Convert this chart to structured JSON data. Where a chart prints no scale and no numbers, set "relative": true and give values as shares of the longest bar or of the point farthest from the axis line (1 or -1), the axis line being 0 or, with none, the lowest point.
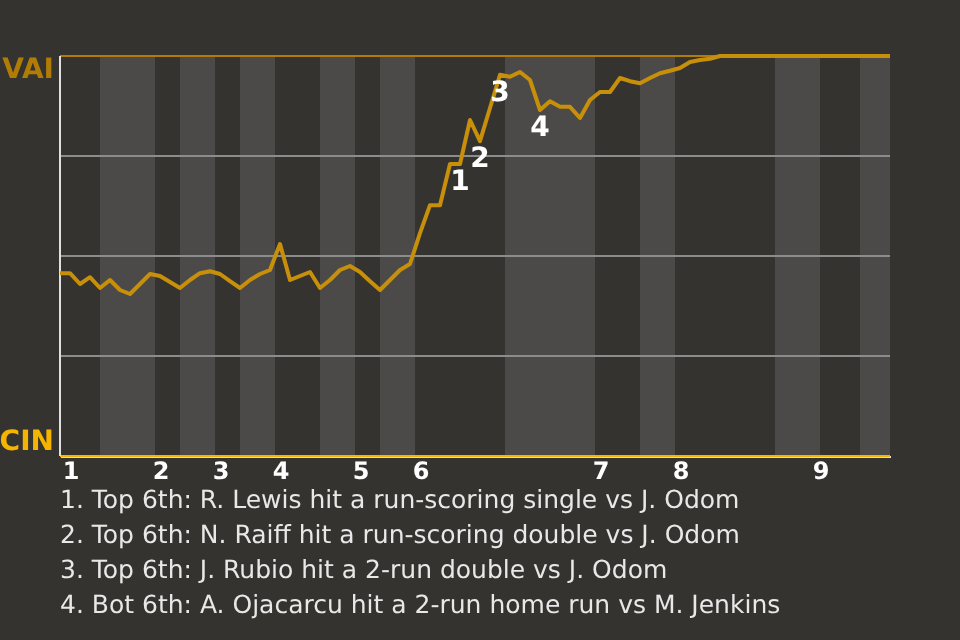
{
  "chart_data": {
    "type": "line",
    "relative": true,
    "categories": [
      null,
      "1",
      null,
      null,
      null,
      null,
      null,
      null,
      null,
      null,
      "2",
      null,
      null,
      null,
      null,
      null,
      "3",
      null,
      null,
      null,
      null,
      null,
      "4",
      null,
      null,
      null,
      null,
      null,
      null,
      null,
      "5",
      null,
      null,
      null,
      null,
      null,
      "6",
      null,
      null,
      null,
      null,
      null,
      null,
      null,
      null,
      null,
      null,
      null,
      null,
      null,
      null,
      null,
      null,
      null,
      "7",
      null,
      null,
      null,
      null,
      null,
      null,
      null,
      "8",
      null,
      null,
      null,
      null,
      null,
      null,
      null,
      null,
      null,
      null,
      null,
      null,
      null,
      "9",
      null,
      null,
      null,
      null,
      null,
      null,
      null
    ],
    "series": [
      {
        "color": "#c8900a",
        "values": [
          0.457,
          0.457,
          0.43,
          0.447,
          0.42,
          0.44,
          0.415,
          0.405,
          0.43,
          0.455,
          0.45,
          0.435,
          0.42,
          0.44,
          0.457,
          0.462,
          0.455,
          0.437,
          0.42,
          0.44,
          0.455,
          0.465,
          0.53,
          0.44,
          0.45,
          0.46,
          0.42,
          0.44,
          0.465,
          0.475,
          0.46,
          0.437,
          0.415,
          0.44,
          0.465,
          0.48,
          0.557,
          0.627,
          0.627,
          0.73,
          0.73,
          0.84,
          0.787,
          0.87,
          0.953,
          0.948,
          0.96,
          0.94,
          0.865,
          0.887,
          0.873,
          0.873,
          0.845,
          0.89,
          0.91,
          0.91,
          0.945,
          0.937,
          0.932,
          0.945,
          0.957,
          0.963,
          0.97,
          0.985,
          0.99,
          0.993,
          1,
          1,
          1,
          1,
          1,
          1,
          1,
          1,
          1,
          1,
          1,
          1,
          1,
          1,
          1,
          1,
          1,
          1
        ]
      }
    ],
    "ref_lines": [
      {
        "axis": "y",
        "value": 1,
        "label": "VAI",
        "color": "#b07c06"
      },
      {
        "axis": "y",
        "value": 0.75,
        "color": "#8c8c8c"
      },
      {
        "axis": "y",
        "value": 0.5,
        "color": "#8c8c8c"
      },
      {
        "axis": "y",
        "value": 0.25,
        "color": "#8c8c8c"
      },
      {
        "axis": "y",
        "value": 0,
        "label": "CIN",
        "color": "#f5b400"
      }
    ],
    "annotations": [
      {
        "text": "1",
        "y": 0.73
      },
      {
        "text": "2",
        "y": 0.787
      },
      {
        "text": "3",
        "y": 0.953
      },
      {
        "text": "4",
        "y": 0.865
      },
      "1. Top 6th: R. Lewis hit a run-scoring single vs J. Odom",
      "2. Top 6th: N. Raiff hit a run-scoring double vs J. Odom",
      "3. Top 6th: J. Rubio hit a 2-run double vs J. Odom",
      "4. Bot 6th: A. Ojacarcu hit a 2-run home run vs M. Jenkins"
    ]
  }
}
